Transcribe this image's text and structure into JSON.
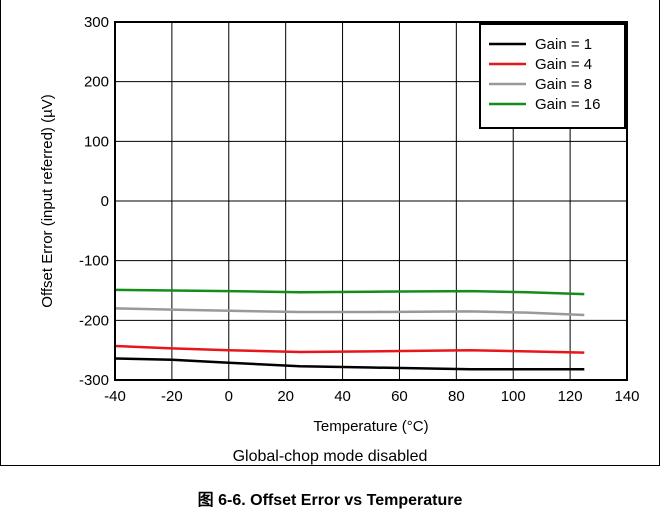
{
  "chart_data": {
    "type": "line",
    "xlabel": "Temperature (°C)",
    "ylabel": "Offset Error (input referred) (µV)",
    "xlim": [
      -40,
      140
    ],
    "ylim": [
      -300,
      300
    ],
    "x_ticks": [
      -40,
      -20,
      0,
      20,
      40,
      60,
      80,
      100,
      120,
      140
    ],
    "y_ticks": [
      300,
      200,
      100,
      0,
      -100,
      -200,
      -300
    ],
    "grid": true,
    "legend_position": "top-right",
    "series": [
      {
        "name": "Gain = 1",
        "color": "#000000",
        "x": [
          -40,
          -20,
          0,
          25,
          50,
          85,
          105,
          125
        ],
        "y": [
          -264,
          -266,
          -271,
          -277,
          -279,
          -282,
          -282,
          -282
        ]
      },
      {
        "name": "Gain = 4",
        "color": "#e8161b",
        "x": [
          -40,
          -20,
          0,
          25,
          50,
          85,
          105,
          125
        ],
        "y": [
          -243,
          -247,
          -250,
          -253,
          -252,
          -250,
          -252,
          -254
        ]
      },
      {
        "name": "Gain = 8",
        "color": "#999999",
        "x": [
          -40,
          -20,
          0,
          25,
          50,
          85,
          105,
          125
        ],
        "y": [
          -180,
          -182,
          -184,
          -186,
          -186,
          -185,
          -187,
          -191
        ]
      },
      {
        "name": "Gain = 16",
        "color": "#138d1a",
        "x": [
          -40,
          -20,
          0,
          25,
          50,
          85,
          105,
          125
        ],
        "y": [
          -149,
          -150,
          -151,
          -153,
          -152,
          -151,
          -153,
          -156
        ]
      }
    ]
  },
  "note": "Global-chop mode disabled",
  "caption": "图 6-6. Offset Error vs Temperature"
}
